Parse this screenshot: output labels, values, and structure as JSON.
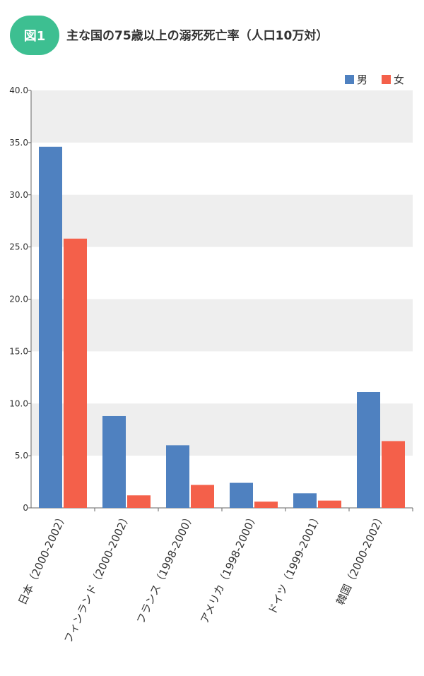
{
  "figure_badge": "図1",
  "figure_title": "主な国の75歳以上の溺死死亡率（人口10万対）",
  "colors": {
    "badge": "#3dbf91",
    "male": "#4f81c0",
    "female": "#f4604a",
    "band": "#eeeeee"
  },
  "chart_data": {
    "type": "bar",
    "categories": [
      "日本（2000-2002）",
      "フィンランド（2000-2002）",
      "フランス（1998-2000）",
      "アメリカ（1998-2000）",
      "ドイツ（1999-2001）",
      "韓国（2000-2002）"
    ],
    "series": [
      {
        "name": "男",
        "values": [
          34.6,
          8.8,
          6.0,
          2.4,
          1.4,
          11.1
        ]
      },
      {
        "name": "女",
        "values": [
          25.8,
          1.2,
          2.2,
          0.6,
          0.7,
          6.4
        ]
      }
    ],
    "yticks": [
      "0",
      "5.0",
      "10.0",
      "15.0",
      "20.0",
      "25.0",
      "30.0",
      "35.0",
      "40.0"
    ],
    "ylim": [
      0,
      40
    ],
    "legend_position": "top-right",
    "grid": "alternating horizontal bands"
  }
}
